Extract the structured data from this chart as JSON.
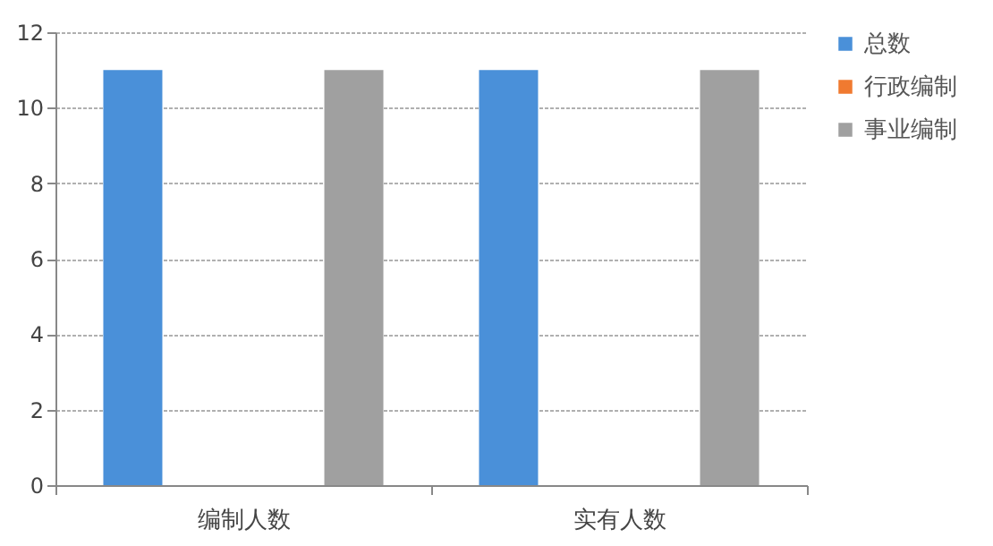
{
  "chart_data": {
    "type": "bar",
    "categories": [
      "编制人数",
      "实有人数"
    ],
    "series": [
      {
        "name": "总数",
        "color": "#4a90d9",
        "values": [
          11,
          11
        ]
      },
      {
        "name": "行政编制",
        "color": "#f07a30",
        "values": [
          0,
          0
        ]
      },
      {
        "name": "事业编制",
        "color": "#a0a0a0",
        "values": [
          11,
          11
        ]
      }
    ],
    "ylim": [
      0,
      12
    ],
    "yticks": [
      0,
      2,
      4,
      6,
      8,
      10,
      12
    ],
    "grid": "y",
    "legend": "right"
  }
}
